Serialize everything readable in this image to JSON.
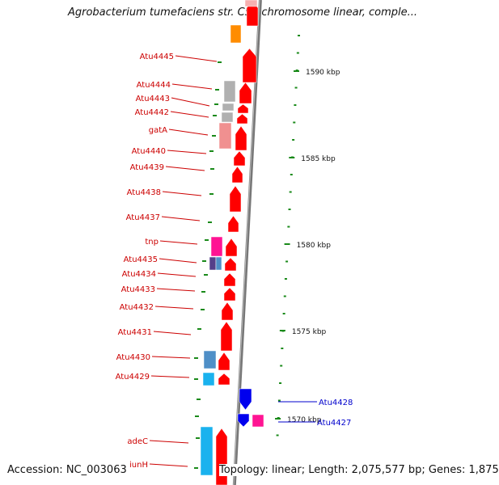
{
  "title": "Agrobacterium tumefaciens str. C58 chromosome linear, comple...",
  "footer": {
    "accession": "Accession: NC_003063",
    "summary": "Topology: linear; Length: 2,075,577 bp; Genes: 1,875"
  },
  "colors": {
    "label_red": "#cc0000",
    "label_blue": "#0000cc",
    "gene_red": "#ff0000",
    "gene_blue": "#0000ee",
    "orange": "#ff8c00",
    "magenta": "#ff1493",
    "cyan": "#1ab2ee",
    "steel_blue": "#4f8fc7",
    "grey": "#b0b0b0",
    "pink": "#f09090",
    "backbone": "#777777",
    "tick": "#1a8a1a"
  },
  "scale_labels": [
    "1590 kbp",
    "1585 kbp",
    "1580 kbp",
    "1575 kbp",
    "1570 kbp"
  ],
  "gene_labels": [
    {
      "text": "Atu4445",
      "strand": "left"
    },
    {
      "text": "Atu4444",
      "strand": "left"
    },
    {
      "text": "Atu4443",
      "strand": "left"
    },
    {
      "text": "Atu4442",
      "strand": "left"
    },
    {
      "text": "gatA",
      "strand": "left"
    },
    {
      "text": "Atu4440",
      "strand": "left"
    },
    {
      "text": "Atu4439",
      "strand": "left"
    },
    {
      "text": "Atu4438",
      "strand": "left"
    },
    {
      "text": "Atu4437",
      "strand": "left"
    },
    {
      "text": "tnp",
      "strand": "left"
    },
    {
      "text": "Atu4435",
      "strand": "left"
    },
    {
      "text": "Atu4434",
      "strand": "left"
    },
    {
      "text": "Atu4433",
      "strand": "left"
    },
    {
      "text": "Atu4432",
      "strand": "left"
    },
    {
      "text": "Atu4431",
      "strand": "left"
    },
    {
      "text": "Atu4430",
      "strand": "left"
    },
    {
      "text": "Atu4429",
      "strand": "left"
    },
    {
      "text": "Atu4428",
      "strand": "right"
    },
    {
      "text": "Atu4427",
      "strand": "right"
    },
    {
      "text": "adeC",
      "strand": "left"
    },
    {
      "text": "iunH",
      "strand": "left"
    }
  ]
}
